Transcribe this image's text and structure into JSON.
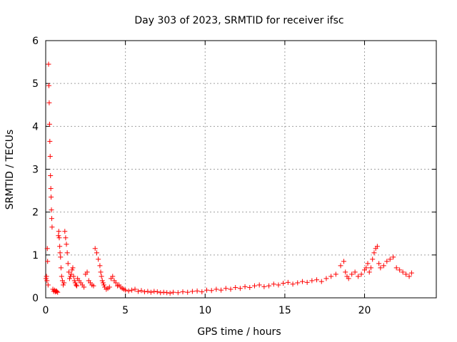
{
  "chart_data": {
    "type": "scatter",
    "title": "Day 303 of 2023, SRMTID for receiver ifsc",
    "xlabel": "GPS time / hours",
    "ylabel": "SRMTID / TECUs",
    "xlim": [
      0,
      24.5
    ],
    "ylim": [
      0,
      6
    ],
    "x_ticks": [
      0,
      5,
      10,
      15,
      20
    ],
    "y_ticks": [
      0,
      1,
      2,
      3,
      4,
      5,
      6
    ],
    "grid": true,
    "marker": "plus",
    "colors": {
      "points": "#ff0000",
      "frame": "#000000",
      "grid": "#a0a0a0"
    },
    "series": [
      {
        "x": [
          0.02,
          0.05,
          0.08,
          0.1,
          0.12,
          0.15,
          0.18,
          0.2,
          0.22,
          0.24,
          0.26,
          0.28,
          0.3,
          0.32,
          0.34,
          0.36,
          0.38,
          0.4,
          0.45,
          0.5,
          0.55,
          0.6,
          0.65,
          0.7,
          0.75,
          0.8,
          0.82,
          0.85,
          0.88,
          0.9,
          0.93,
          0.96,
          1.0,
          1.05,
          1.1,
          1.15,
          1.2,
          1.25,
          1.3,
          1.35,
          1.4,
          1.45,
          1.5,
          1.55,
          1.6,
          1.65,
          1.7,
          1.75,
          1.8,
          1.85,
          1.9,
          1.95,
          2.0,
          2.1,
          2.2,
          2.3,
          2.4,
          2.5,
          2.6,
          2.7,
          2.8,
          2.9,
          3.0,
          3.1,
          3.2,
          3.3,
          3.4,
          3.45,
          3.5,
          3.55,
          3.6,
          3.65,
          3.7,
          3.8,
          3.9,
          4.0,
          4.1,
          4.2,
          4.3,
          4.4,
          4.5,
          4.6,
          4.7,
          4.8,
          4.9,
          5.0,
          5.2,
          5.4,
          5.6,
          5.8,
          6.0,
          6.2,
          6.4,
          6.6,
          6.8,
          7.0,
          7.2,
          7.4,
          7.6,
          7.8,
          8.0,
          8.3,
          8.6,
          8.9,
          9.2,
          9.5,
          9.8,
          10.1,
          10.4,
          10.7,
          11.0,
          11.3,
          11.6,
          11.9,
          12.2,
          12.5,
          12.8,
          13.1,
          13.4,
          13.7,
          14.0,
          14.3,
          14.6,
          14.9,
          15.2,
          15.5,
          15.8,
          16.1,
          16.4,
          16.7,
          17.0,
          17.3,
          17.6,
          17.9,
          18.2,
          18.5,
          18.7,
          18.8,
          18.9,
          19.0,
          19.2,
          19.4,
          19.6,
          19.8,
          20.0,
          20.1,
          20.2,
          20.3,
          20.4,
          20.5,
          20.6,
          20.7,
          20.8,
          20.9,
          21.0,
          21.2,
          21.4,
          21.6,
          21.8,
          22.0,
          22.2,
          22.4,
          22.6,
          22.8,
          22.95
        ],
        "y": [
          0.45,
          0.5,
          0.4,
          1.15,
          0.85,
          0.3,
          5.45,
          4.95,
          4.55,
          4.05,
          3.65,
          3.3,
          2.85,
          2.55,
          2.35,
          2.05,
          1.85,
          1.65,
          0.2,
          0.15,
          0.18,
          0.14,
          0.16,
          0.15,
          0.13,
          1.45,
          1.55,
          1.4,
          1.2,
          1.05,
          0.95,
          0.7,
          0.5,
          0.4,
          0.3,
          0.35,
          1.55,
          1.4,
          1.25,
          1.05,
          0.8,
          0.6,
          0.45,
          0.5,
          0.55,
          0.65,
          0.7,
          0.5,
          0.4,
          0.35,
          0.3,
          0.28,
          0.45,
          0.4,
          0.35,
          0.3,
          0.25,
          0.55,
          0.6,
          0.4,
          0.35,
          0.3,
          0.28,
          1.15,
          1.05,
          0.9,
          0.75,
          0.6,
          0.5,
          0.4,
          0.35,
          0.3,
          0.25,
          0.2,
          0.22,
          0.25,
          0.45,
          0.5,
          0.4,
          0.35,
          0.28,
          0.3,
          0.25,
          0.22,
          0.2,
          0.18,
          0.16,
          0.18,
          0.2,
          0.15,
          0.17,
          0.14,
          0.15,
          0.13,
          0.15,
          0.14,
          0.12,
          0.13,
          0.12,
          0.11,
          0.13,
          0.12,
          0.14,
          0.13,
          0.15,
          0.16,
          0.14,
          0.18,
          0.17,
          0.2,
          0.18,
          0.22,
          0.2,
          0.24,
          0.22,
          0.26,
          0.24,
          0.28,
          0.3,
          0.26,
          0.28,
          0.32,
          0.3,
          0.34,
          0.36,
          0.32,
          0.35,
          0.38,
          0.36,
          0.4,
          0.42,
          0.38,
          0.45,
          0.5,
          0.55,
          0.75,
          0.85,
          0.6,
          0.5,
          0.45,
          0.55,
          0.6,
          0.5,
          0.55,
          0.65,
          0.7,
          0.8,
          0.6,
          0.7,
          0.9,
          1.05,
          1.15,
          1.2,
          0.8,
          0.7,
          0.75,
          0.85,
          0.9,
          0.95,
          0.7,
          0.65,
          0.6,
          0.55,
          0.5,
          0.58
        ]
      }
    ]
  }
}
